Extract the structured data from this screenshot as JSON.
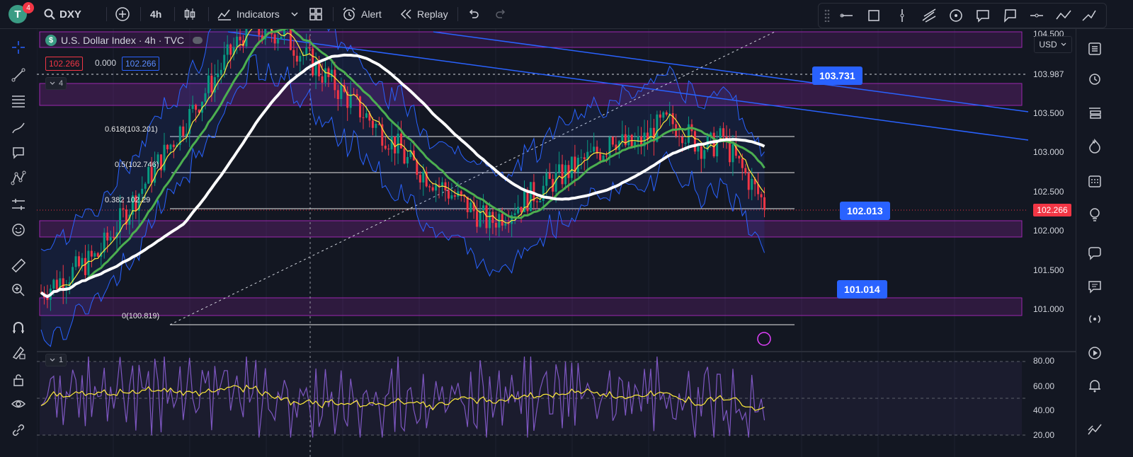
{
  "topbar": {
    "avatar_letter": "T",
    "notification_count": "4",
    "symbol": "DXY",
    "timeframe": "4h",
    "indicators_label": "Indicators",
    "alert_label": "Alert",
    "replay_label": "Replay"
  },
  "legend": {
    "title": "U.S. Dollar Index · 4h · TVC",
    "symbol_glyph": "$",
    "values": [
      "102.266",
      "0.000",
      "102.266"
    ],
    "main_pane_count": "4",
    "rsi_pane_count": "1"
  },
  "currency": "USD",
  "price_axis": {
    "labels": [
      "104.500",
      "103.987",
      "103.500",
      "103.000",
      "102.500",
      "102.000",
      "101.500",
      "101.000"
    ],
    "current_price": "102.266"
  },
  "rsi_axis": {
    "labels": [
      "80.00",
      "60.00",
      "40.00",
      "20.00"
    ]
  },
  "fib": {
    "levels": [
      "0.618(103.201)",
      "0.5(102.746)",
      "0.382 102.29",
      "0(100.819)"
    ]
  },
  "callouts": [
    "103.731",
    "102.013",
    "101.014"
  ],
  "colors": {
    "up": "#089981",
    "down": "#f23645",
    "zone": "#9c27b0",
    "trend": "#2962ff",
    "sma_white": "#ffffff",
    "ema_green": "#4caf50",
    "ema_yellow": "#ffeb3b",
    "bollinger": "#2962ff",
    "rsi": "#7e57c2"
  },
  "icons": {
    "topbar": [
      "search-icon",
      "add-icon",
      "candles-icon",
      "indicators-icon",
      "layout-icon",
      "alert-icon",
      "replay-icon",
      "undo-icon",
      "redo-icon"
    ],
    "drawbar": [
      "line-icon",
      "rectangle-icon",
      "vertical-line-icon",
      "pitchfork-icon",
      "circle-icon",
      "note-icon",
      "callout-icon",
      "horizontal-line-icon",
      "path-icon"
    ],
    "left": [
      "crosshair-icon",
      "trendline-icon",
      "fib-icon",
      "brush-icon",
      "text-icon",
      "pattern-icon",
      "forecast-icon",
      "emoji-icon",
      "ruler-icon",
      "zoom-in-icon",
      "magnet-icon",
      "lock-drawing-icon",
      "lock-icon",
      "eye-icon",
      "link-icon"
    ],
    "right": [
      "watchlist-icon",
      "alarm-icon",
      "list-icon",
      "hot-icon",
      "calendar-icon",
      "idea-icon",
      "chat-icon",
      "notes-icon",
      "stream-icon",
      "play-icon",
      "bell-icon",
      "ticker-icon"
    ]
  }
}
